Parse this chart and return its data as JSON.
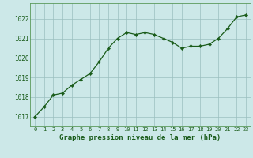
{
  "x": [
    0,
    1,
    2,
    3,
    4,
    5,
    6,
    7,
    8,
    9,
    10,
    11,
    12,
    13,
    14,
    15,
    16,
    17,
    18,
    19,
    20,
    21,
    22,
    23
  ],
  "y": [
    1017.0,
    1017.5,
    1018.1,
    1018.2,
    1018.6,
    1018.9,
    1019.2,
    1019.8,
    1020.5,
    1021.0,
    1021.3,
    1021.2,
    1021.3,
    1021.2,
    1021.0,
    1020.8,
    1020.5,
    1020.6,
    1020.6,
    1020.7,
    1021.0,
    1021.5,
    1022.1,
    1022.2
  ],
  "line_color": "#1a5c1a",
  "marker": "D",
  "marker_size": 2.2,
  "line_width": 0.9,
  "bg_color": "#cce8e8",
  "grid_color": "#9bbfbf",
  "xlabel": "Graphe pression niveau de la mer (hPa)",
  "xlabel_fontsize": 6.5,
  "xlabel_color": "#1a5c1a",
  "ylim": [
    1016.5,
    1022.8
  ],
  "yticks": [
    1017,
    1018,
    1019,
    1020,
    1021,
    1022
  ],
  "xtick_fontsize": 5.0,
  "ytick_fontsize": 5.5,
  "tick_color": "#1a5c1a",
  "spine_color": "#5a9a5a"
}
